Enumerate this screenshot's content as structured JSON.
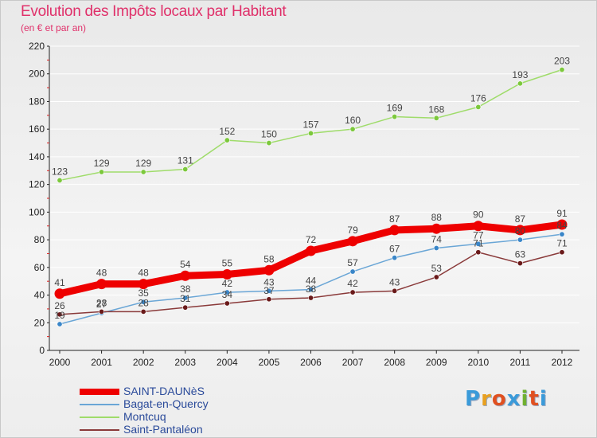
{
  "header": {
    "title": "Evolution des Impôts locaux par Habitant",
    "subtitle": "(en € et par an)"
  },
  "logo": {
    "letters": [
      "P",
      "r",
      "o",
      "x",
      "i",
      "t",
      "i"
    ],
    "colors": [
      "#3a9ad9",
      "#e8a020",
      "#e05020",
      "#3a9ad9",
      "#70b030",
      "#e05020",
      "#3a9ad9"
    ]
  },
  "colors": {
    "axis": "#222222",
    "grid": "#ffffff",
    "value_label": "#444444",
    "tick_label": "#222222"
  },
  "chart_data": {
    "type": "line",
    "title": "Evolution des Impôts locaux par Habitant",
    "subtitle": "(en € et par an)",
    "xlabel": "",
    "ylabel": "",
    "ylim": [
      0,
      220
    ],
    "yticks": [
      0,
      20,
      40,
      60,
      80,
      100,
      120,
      140,
      160,
      180,
      200,
      220
    ],
    "grid": true,
    "legend_position": "bottom-left",
    "x": [
      "2000",
      "2001",
      "2002",
      "2003",
      "2004",
      "2005",
      "2006",
      "2007",
      "2008",
      "2009",
      "2010",
      "2011",
      "2012"
    ],
    "series": [
      {
        "name": "SAINT-DAUNèS",
        "values": [
          41,
          48,
          48,
          54,
          55,
          58,
          72,
          79,
          87,
          88,
          90,
          87,
          91
        ],
        "color": "#ee0000",
        "marker": "#ee0000",
        "weight": "bold"
      },
      {
        "name": "Bagat-en-Quercy",
        "values": [
          19,
          27,
          35,
          38,
          42,
          43,
          44,
          57,
          67,
          74,
          77,
          80,
          84
        ],
        "color": "#6aa6d6",
        "marker": "#3a86c8",
        "weight": "normal"
      },
      {
        "name": "Montcuq",
        "values": [
          123,
          129,
          129,
          131,
          152,
          150,
          157,
          160,
          169,
          168,
          176,
          193,
          203
        ],
        "color": "#9fdc6a",
        "marker": "#7cc83c",
        "weight": "normal"
      },
      {
        "name": "Saint-Pantaléon",
        "values": [
          26,
          28,
          28,
          31,
          34,
          37,
          38,
          42,
          43,
          53,
          71,
          63,
          71
        ],
        "color": "#8a3a3a",
        "marker": "#6a1a1a",
        "weight": "normal"
      }
    ]
  }
}
